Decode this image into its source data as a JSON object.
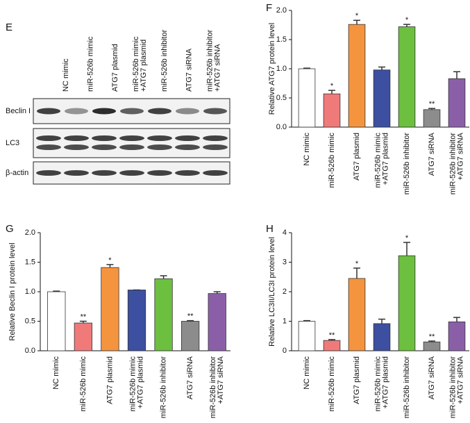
{
  "blot": {
    "label": "E",
    "lanes": [
      [
        "NC mimic"
      ],
      [
        "miR-526b mimic"
      ],
      [
        "ATG7 plasmid"
      ],
      [
        "miR-526b mimic",
        "+ATG7 plasmid"
      ],
      [
        "miR-526b inhibitor"
      ],
      [
        "ATG7 siRNA"
      ],
      [
        "miR-526b inhibitor",
        "+ATG7 siRNA"
      ]
    ],
    "rows": [
      "Beclin I",
      "LC3",
      "β-actin"
    ]
  },
  "chart_data": [
    {
      "type": "bar",
      "label": "F",
      "y_label": "Relative ATG7 protein level",
      "categories": [
        [
          "NC mimic"
        ],
        [
          "miR-526b mimic"
        ],
        [
          "ATG7 plasmid"
        ],
        [
          "miR-526b mimic",
          "+ATG7 plasmid"
        ],
        [
          "miR-526b inhibitor"
        ],
        [
          "ATG7 siRNA"
        ],
        [
          "miR-526b inhibitor",
          "+ATG7 siRNA"
        ]
      ],
      "values": [
        1.0,
        0.57,
        1.76,
        0.98,
        1.72,
        0.3,
        0.83
      ],
      "errors": [
        0.01,
        0.06,
        0.07,
        0.05,
        0.04,
        0.02,
        0.12
      ],
      "annotations": [
        null,
        "*",
        "*",
        null,
        "*",
        "**",
        null
      ],
      "colors": [
        "#ffffff",
        "#f07a7a",
        "#f5943f",
        "#3d4fa0",
        "#6cbf3f",
        "#8c8c8c",
        "#8b5fa8"
      ],
      "ylim": [
        0,
        2
      ],
      "yticks": [
        {
          "value": 0,
          "label": "0.0"
        },
        0.5,
        {
          "value": 1,
          "label": "1.0"
        },
        1.5,
        {
          "value": 2,
          "label": "2.0"
        }
      ]
    },
    {
      "type": "bar",
      "label": "G",
      "y_label": "Relative Beclin I protein level",
      "categories": [
        [
          "NC mimic"
        ],
        [
          "miR-526b mimic"
        ],
        [
          "ATG7 plasmid"
        ],
        [
          "miR-526b mimic",
          "+ATG7 plasmid"
        ],
        [
          "miR-526b inhibitor"
        ],
        [
          "ATG7 siRNA"
        ],
        [
          "miR-526b inhibitor",
          "+ATG7 siRNA"
        ]
      ],
      "values": [
        1.0,
        0.47,
        1.41,
        1.03,
        1.22,
        0.5,
        0.97
      ],
      "errors": [
        0.01,
        0.03,
        0.05,
        0,
        0.05,
        0.01,
        0.03
      ],
      "annotations": [
        null,
        "**",
        "*",
        null,
        null,
        "**",
        null
      ],
      "colors": [
        "#ffffff",
        "#f07a7a",
        "#f5943f",
        "#3d4fa0",
        "#6cbf3f",
        "#8c8c8c",
        "#8b5fa8"
      ],
      "ylim": [
        0,
        2
      ],
      "yticks": [
        {
          "value": 0,
          "label": "0.0"
        },
        0.5,
        {
          "value": 1,
          "label": "1.0"
        },
        1.5,
        {
          "value": 2,
          "label": "2.0"
        }
      ]
    },
    {
      "type": "bar",
      "label": "H",
      "y_label": "Relative LC3II/LC3I protein level",
      "categories": [
        [
          "NC mimic"
        ],
        [
          "miR-526b mimic"
        ],
        [
          "ATG7 plasmid"
        ],
        [
          "miR-526b mimic",
          "+ATG7 plasmid"
        ],
        [
          "miR-526b inhibitor"
        ],
        [
          "ATG7 siRNA"
        ],
        [
          "miR-526b inhibitor",
          "+ATG7 siRNA"
        ]
      ],
      "values": [
        1.0,
        0.35,
        2.45,
        0.92,
        3.22,
        0.3,
        0.98
      ],
      "errors": [
        0.02,
        0.03,
        0.35,
        0.15,
        0.45,
        0.03,
        0.15
      ],
      "annotations": [
        null,
        "**",
        "*",
        null,
        "*",
        "**",
        null
      ],
      "colors": [
        "#ffffff",
        "#f07a7a",
        "#f5943f",
        "#3d4fa0",
        "#6cbf3f",
        "#8c8c8c",
        "#8b5fa8"
      ],
      "ylim": [
        0,
        4
      ],
      "yticks": [
        0,
        1,
        2,
        3,
        4
      ]
    }
  ]
}
